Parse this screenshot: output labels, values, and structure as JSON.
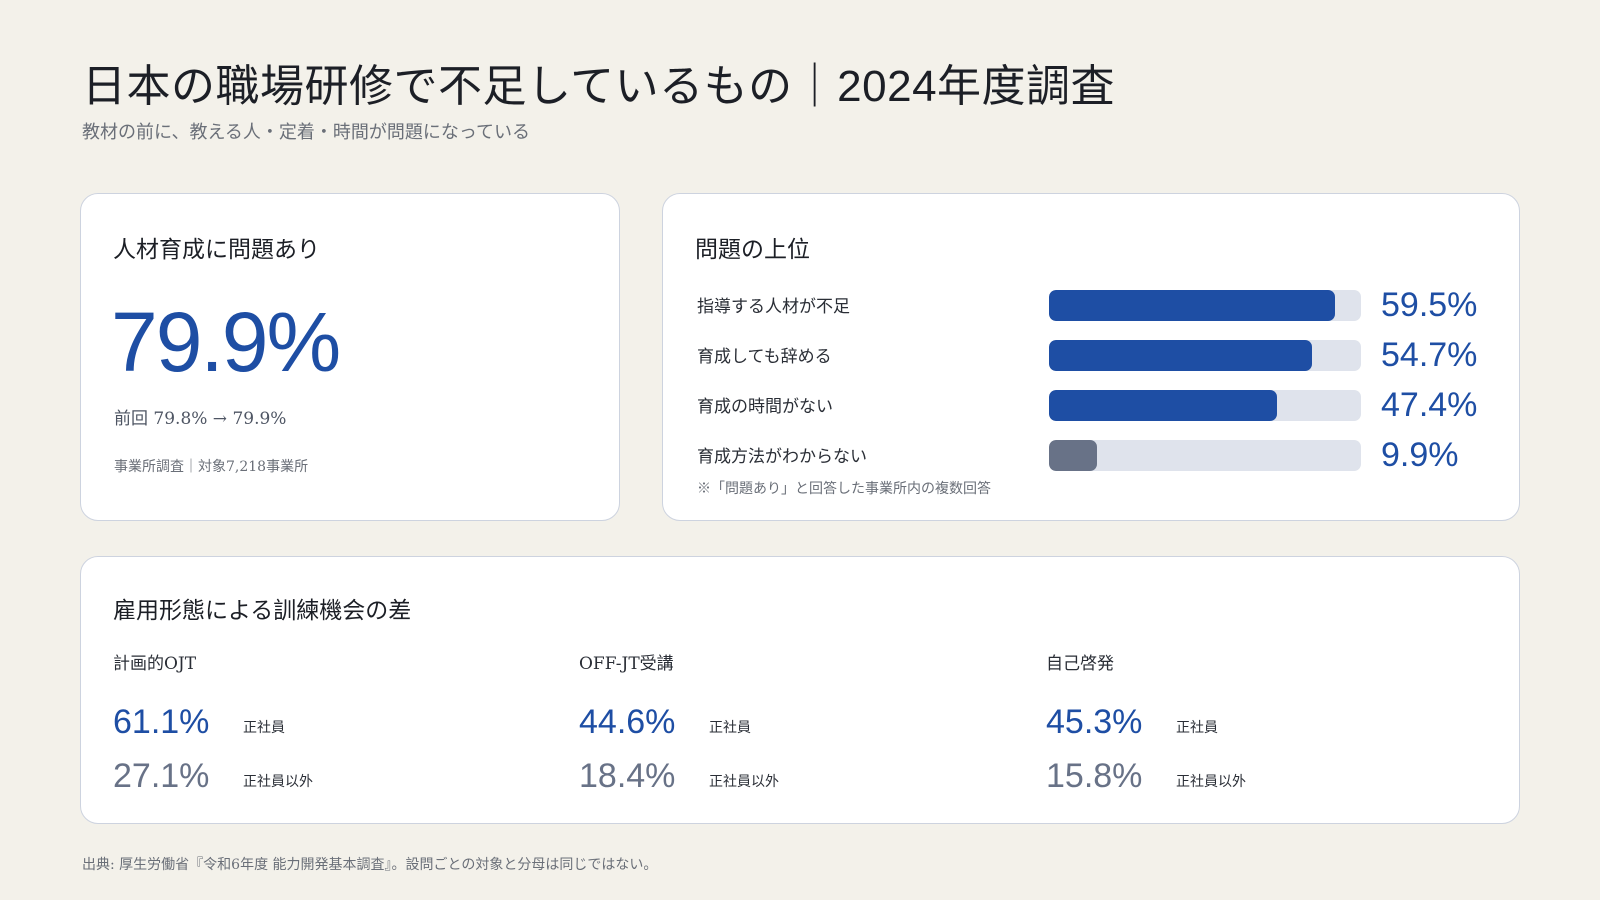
{
  "header": {
    "title": "日本の職場研修で不足しているもの｜2024年度調査",
    "subtitle": "教材の前に、教える人・定着・時間が問題になっている"
  },
  "card_rate": {
    "title": "人材育成に問題あり",
    "value": "79.9%",
    "previous": "前回 79.8% → 79.9%",
    "note": "事業所調査｜対象7,218事業所"
  },
  "card_issues": {
    "title": "問題の上位",
    "note": "※「問題あり」と回答した事業所内の複数回答"
  },
  "card_employment": {
    "title": "雇用形態による訓練機会の差",
    "columns": [
      {
        "title": "計画的OJT",
        "regular": "61.1%",
        "regular_label": "正社員",
        "nonregular": "27.1%",
        "nonregular_label": "正社員以外"
      },
      {
        "title": "OFF-JT受講",
        "regular": "44.6%",
        "regular_label": "正社員",
        "nonregular": "18.4%",
        "nonregular_label": "正社員以外"
      },
      {
        "title": "自己啓発",
        "regular": "45.3%",
        "regular_label": "正社員",
        "nonregular": "15.8%",
        "nonregular_label": "正社員以外"
      }
    ]
  },
  "footer": {
    "source": "出典: 厚生労働省『令和6年度 能力開発基本調査』。設問ごとの対象と分母は同じではない。"
  },
  "colors": {
    "background": "#f3f1ea",
    "accent": "#1e4ea4",
    "muted_bar": "#687287",
    "track": "#dfe3ec"
  },
  "chart_data": {
    "type": "bar",
    "orientation": "horizontal",
    "title": "問題の上位",
    "categories": [
      "指導する人材が不足",
      "育成しても辞める",
      "育成の時間がない",
      "育成方法がわからない"
    ],
    "values": [
      59.5,
      54.7,
      47.4,
      9.9
    ],
    "value_labels": [
      "59.5%",
      "54.7%",
      "47.4%",
      "9.9%"
    ],
    "bar_colors": [
      "#1e4ea4",
      "#1e4ea4",
      "#1e4ea4",
      "#687287"
    ],
    "xlim": [
      0,
      65
    ],
    "grid": false
  }
}
